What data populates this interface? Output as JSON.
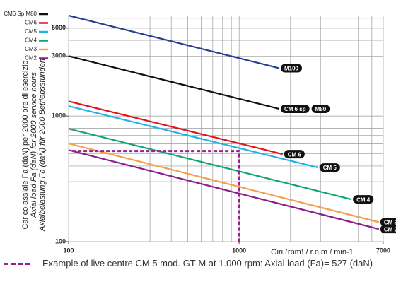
{
  "chart_data": {
    "type": "line",
    "log_x": true,
    "log_y": true,
    "xlabel": "Giri (rpm) / r.p.m / min-1",
    "ylabel": [
      "Carico assiale Fa (daN) per 2000 ore di esercizio",
      "Axial load Fa (daN) for 2000 service hours",
      "Axialbelastung Fa (daN) für 2000 Betriebsstunden"
    ],
    "xlim": [
      100,
      7000
    ],
    "ylim": [
      100,
      6300
    ],
    "xticks": [
      100,
      1000,
      7000
    ],
    "yticks": [
      100,
      1000,
      3000,
      5000
    ],
    "xgrid": [
      100,
      200,
      300,
      400,
      500,
      600,
      700,
      800,
      900,
      1000,
      2000,
      3000,
      4000,
      5000,
      6000,
      7000
    ],
    "ygrid": [
      100,
      200,
      300,
      400,
      500,
      600,
      700,
      800,
      900,
      1000,
      2000,
      3000,
      4000,
      5000,
      6000
    ],
    "legend": [
      {
        "name": "CM6 Sp M80",
        "color": "#111111"
      },
      {
        "name": "CM6",
        "color": "#e3121b"
      },
      {
        "name": "CM5",
        "color": "#1fb5e3"
      },
      {
        "name": "CM4",
        "color": "#12a572"
      },
      {
        "name": "CM3",
        "color": "#f5a04a"
      },
      {
        "name": "CM2",
        "color": "#8a1f8c"
      }
    ],
    "series": [
      {
        "labels": [
          "M100"
        ],
        "color": "#263f8f",
        "x": [
          100,
          1720
        ],
        "values": [
          6300,
          2400
        ]
      },
      {
        "labels": [
          "CM 6 sp",
          "M80"
        ],
        "color": "#111111",
        "x": [
          100,
          1720
        ],
        "values": [
          3000,
          1140
        ]
      },
      {
        "labels": [
          "CM 6"
        ],
        "color": "#e3121b",
        "x": [
          100,
          1800
        ],
        "values": [
          1310,
          497
        ]
      },
      {
        "labels": [
          "CM 5"
        ],
        "color": "#1fb5e3",
        "x": [
          100,
          2900
        ],
        "values": [
          1200,
          389
        ]
      },
      {
        "labels": [
          "CM 4"
        ],
        "color": "#12a572",
        "x": [
          100,
          4560
        ],
        "values": [
          792,
          217
        ]
      },
      {
        "labels": [
          "CM 3"
        ],
        "color": "#f5a04a",
        "x": [
          100,
          6600
        ],
        "values": [
          604,
          143
        ]
      },
      {
        "labels": [
          "CM 2"
        ],
        "color": "#8a1f8c",
        "x": [
          100,
          6600
        ],
        "values": [
          536,
          126
        ]
      }
    ],
    "example": {
      "color": "#9b1f8e",
      "x": [
        105,
        1000,
        1000
      ],
      "values": [
        527,
        527,
        100
      ],
      "caption": "Example of live centre CM 5 mod. GT-M at 1.000 rpm: Axial load (Fa)= 527 (daN)"
    }
  }
}
